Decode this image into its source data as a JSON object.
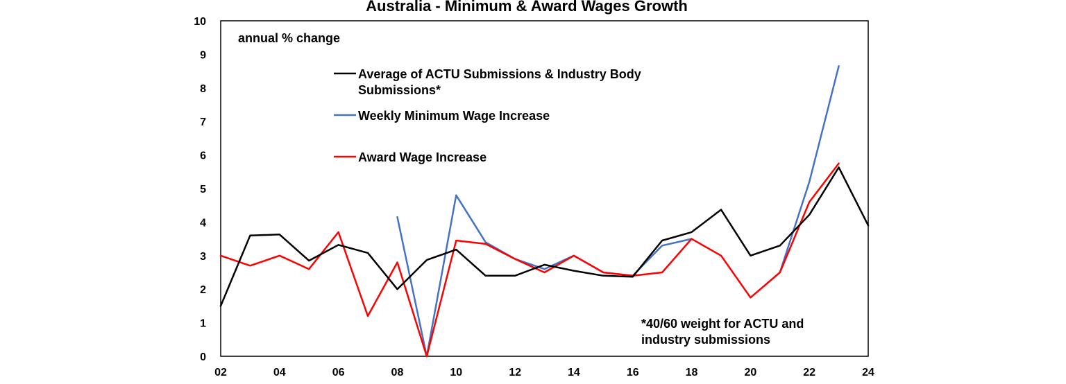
{
  "chart_data": {
    "type": "line",
    "title": "Australia - Minimum & Award Wages Growth",
    "unit_label": "annual % change",
    "xlim": [
      2,
      24
    ],
    "ylim": [
      0,
      10
    ],
    "x_ticks": [
      "02",
      "04",
      "06",
      "08",
      "10",
      "12",
      "14",
      "16",
      "18",
      "20",
      "22",
      "24"
    ],
    "x_tick_values": [
      2,
      4,
      6,
      8,
      10,
      12,
      14,
      16,
      18,
      20,
      22,
      24
    ],
    "y_ticks": [
      "0",
      "1",
      "2",
      "3",
      "4",
      "5",
      "6",
      "7",
      "8",
      "9",
      "10"
    ],
    "y_tick_values": [
      0,
      1,
      2,
      3,
      4,
      5,
      6,
      7,
      8,
      9,
      10
    ],
    "grid": false,
    "legend_position": "top-center inside",
    "series": [
      {
        "name": "Average of ACTU Submissions & Industry Body",
        "name_line2": "Submissions*",
        "color": "#000000",
        "x": [
          2,
          3,
          4,
          5,
          6,
          7,
          8,
          9,
          10,
          11,
          12,
          13,
          14,
          15,
          16,
          17,
          18,
          19,
          20,
          21,
          22,
          23,
          24
        ],
        "values": [
          1.5,
          3.6,
          3.63,
          2.85,
          3.32,
          3.08,
          2.0,
          2.87,
          3.18,
          2.4,
          2.4,
          2.73,
          2.55,
          2.4,
          2.37,
          3.45,
          3.7,
          4.37,
          3.0,
          3.3,
          4.22,
          5.63,
          3.9
        ]
      },
      {
        "name": "Weekly Minimum Wage Increase",
        "color": "#4472c4",
        "x": [
          8,
          9,
          10,
          11,
          12,
          13,
          14,
          15,
          16,
          17,
          18,
          19,
          20,
          21,
          22,
          23
        ],
        "values": [
          4.15,
          0.0,
          4.8,
          3.4,
          2.9,
          2.6,
          3.0,
          2.5,
          2.4,
          3.3,
          3.5,
          null,
          null,
          2.5,
          5.2,
          8.65
        ]
      },
      {
        "name": "Award Wage Increase",
        "color": "#ff0000",
        "x": [
          2,
          3,
          4,
          5,
          6,
          7,
          8,
          9,
          10,
          11,
          12,
          13,
          14,
          15,
          16,
          17,
          18,
          19,
          20,
          21,
          22,
          23
        ],
        "values": [
          3.0,
          2.7,
          3.0,
          2.6,
          3.7,
          1.2,
          2.8,
          0.0,
          3.45,
          3.35,
          2.9,
          2.5,
          3.0,
          2.5,
          2.4,
          2.5,
          3.5,
          3.0,
          1.75,
          2.5,
          4.6,
          5.75
        ]
      }
    ],
    "note_line1": "*40/60 weight for ACTU and",
    "note_line2": "industry submissions"
  }
}
